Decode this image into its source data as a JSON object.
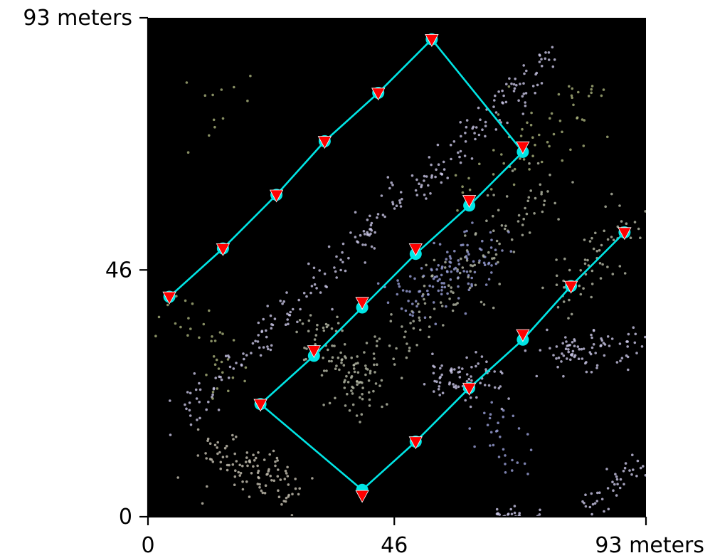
{
  "chart_data": {
    "type": "scatter",
    "title": "",
    "xlabel": "",
    "ylabel": "",
    "xlim": [
      0,
      93
    ],
    "ylim": [
      0,
      93
    ],
    "x_ticks": [
      {
        "value": 0,
        "label": "0"
      },
      {
        "value": 46,
        "label": "46"
      },
      {
        "value": 93,
        "label": "93 meters"
      }
    ],
    "y_ticks": [
      {
        "value": 0,
        "label": "0"
      },
      {
        "value": 46,
        "label": "46"
      },
      {
        "value": 93,
        "label": "93 meters"
      }
    ],
    "background_color": "#000000",
    "grid": false,
    "legend": "none",
    "series": [
      {
        "style": "cyan line with cyan circle markers",
        "line_color": "#00e5e5",
        "marker_color": "#00e5e5",
        "x": [
          4,
          14,
          24,
          33,
          43,
          53,
          70,
          60,
          50,
          40,
          31,
          21,
          40,
          50,
          60,
          70,
          79,
          89
        ],
        "y": [
          41,
          50,
          60,
          70,
          79,
          89,
          68,
          58,
          49,
          39,
          30,
          21,
          5,
          14,
          24,
          33,
          43,
          53
        ]
      },
      {
        "style": "red downward triangle markers",
        "marker_color": "#ff0000",
        "x": [
          4,
          14,
          24,
          33,
          43,
          53,
          70,
          60,
          50,
          40,
          31,
          21,
          40,
          50,
          60,
          70,
          79,
          89
        ],
        "y": [
          41,
          50,
          60,
          70,
          79,
          89,
          69,
          59,
          50,
          40,
          31,
          21,
          4,
          14,
          24,
          34,
          43,
          53
        ]
      }
    ],
    "background_points": {
      "description_color_palette": [
        "#c9c6e6",
        "#b8bca8",
        "#a9b27c",
        "#9aa0d8",
        "#c7c2b3"
      ],
      "clusters": [
        {
          "x0": 6,
          "y0": 19,
          "x1": 76,
          "y1": 86,
          "color": "#c9c6e6",
          "count": 260,
          "spread": 1.6
        },
        {
          "x0": 36,
          "y0": 20,
          "x1": 74,
          "y1": 62,
          "color": "#b8bca8",
          "count": 160,
          "spread": 3.0
        },
        {
          "x0": 48,
          "y0": 40,
          "x1": 62,
          "y1": 50,
          "color": "#9aa0d8",
          "count": 120,
          "spread": 3.0
        },
        {
          "x0": 52,
          "y0": 26,
          "x1": 64,
          "y1": 26,
          "color": "#c9c6e6",
          "count": 70,
          "spread": 2.0
        },
        {
          "x0": 74,
          "y0": 30,
          "x1": 92,
          "y1": 32,
          "color": "#c9c6e6",
          "count": 90,
          "spread": 2.0
        },
        {
          "x0": 76,
          "y0": 40,
          "x1": 90,
          "y1": 56,
          "color": "#b8bca8",
          "count": 60,
          "spread": 3.0
        },
        {
          "x0": 12,
          "y0": 12,
          "x1": 28,
          "y1": 4,
          "color": "#c7c2b3",
          "count": 110,
          "spread": 2.5
        },
        {
          "x0": 30,
          "y0": 36,
          "x1": 40,
          "y1": 24,
          "color": "#b8bca8",
          "count": 80,
          "spread": 2.0
        },
        {
          "x0": 60,
          "y0": 62,
          "x1": 82,
          "y1": 78,
          "color": "#a9b27c",
          "count": 60,
          "spread": 3.0
        },
        {
          "x0": 82,
          "y0": 2,
          "x1": 92,
          "y1": 10,
          "color": "#c9c6e6",
          "count": 40,
          "spread": 1.5
        },
        {
          "x0": 6,
          "y0": 38,
          "x1": 16,
          "y1": 24,
          "color": "#a9b27c",
          "count": 35,
          "spread": 3.0
        },
        {
          "x0": 64,
          "y0": 18,
          "x1": 70,
          "y1": 8,
          "color": "#9aa0d8",
          "count": 30,
          "spread": 2.0
        },
        {
          "x0": 10,
          "y0": 70,
          "x1": 18,
          "y1": 86,
          "color": "#a9b27c",
          "count": 12,
          "spread": 4.0
        },
        {
          "x0": 64,
          "y0": 0,
          "x1": 74,
          "y1": 1,
          "color": "#c9c6e6",
          "count": 25,
          "spread": 0.8
        }
      ]
    }
  }
}
